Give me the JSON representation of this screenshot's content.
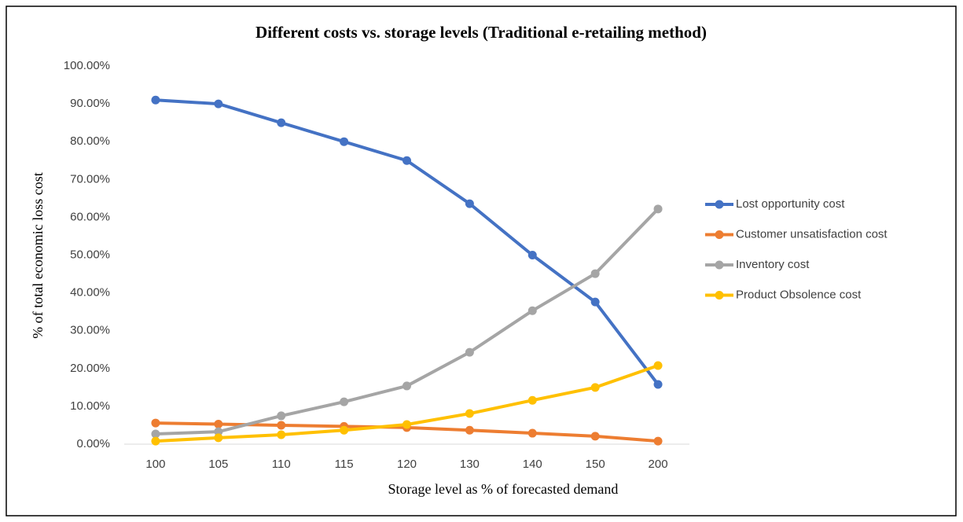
{
  "chart_data": {
    "type": "line",
    "title": "Different costs vs. storage levels (Traditional  e-retailing method)",
    "x_label": "Storage level as % of forecasted demand",
    "y_label": "% of total economic loss cost",
    "categories": [
      "100",
      "105",
      "110",
      "115",
      "120",
      "130",
      "140",
      "150",
      "200"
    ],
    "series": [
      {
        "name": "Lost opportunity cost",
        "color": "#4472c4",
        "values": [
          91,
          90,
          85,
          80,
          75,
          63.6,
          50,
          37.6,
          15.8
        ]
      },
      {
        "name": "Customer unsatisfaction cost",
        "color": "#ed7d31",
        "values": [
          5.6,
          5.3,
          5,
          4.7,
          4.4,
          3.7,
          2.9,
          2.1,
          0.8
        ]
      },
      {
        "name": "Inventory cost",
        "color": "#a5a5a5",
        "values": [
          2.7,
          3.3,
          7.5,
          11.2,
          15.4,
          24.3,
          35.3,
          45.1,
          62.2
        ]
      },
      {
        "name": "Product Obsolence cost",
        "color": "#ffc000",
        "values": [
          0.8,
          1.7,
          2.5,
          3.7,
          5.2,
          8.1,
          11.6,
          15,
          20.8
        ]
      }
    ],
    "ylim": [
      0,
      100
    ],
    "yticks": [
      {
        "value": 0,
        "label": "0.00%"
      },
      {
        "value": 10,
        "label": "10.00%"
      },
      {
        "value": 20,
        "label": "20.00%"
      },
      {
        "value": 30,
        "label": "30.00%"
      },
      {
        "value": 40,
        "label": "40.00%"
      },
      {
        "value": 50,
        "label": "50.00%"
      },
      {
        "value": 60,
        "label": "60.00%"
      },
      {
        "value": 70,
        "label": "70.00%"
      },
      {
        "value": 80,
        "label": "80.00%"
      },
      {
        "value": 90,
        "label": "90.00%"
      },
      {
        "value": 100,
        "label": "100.00%"
      }
    ],
    "grid": false,
    "legend": "right"
  }
}
